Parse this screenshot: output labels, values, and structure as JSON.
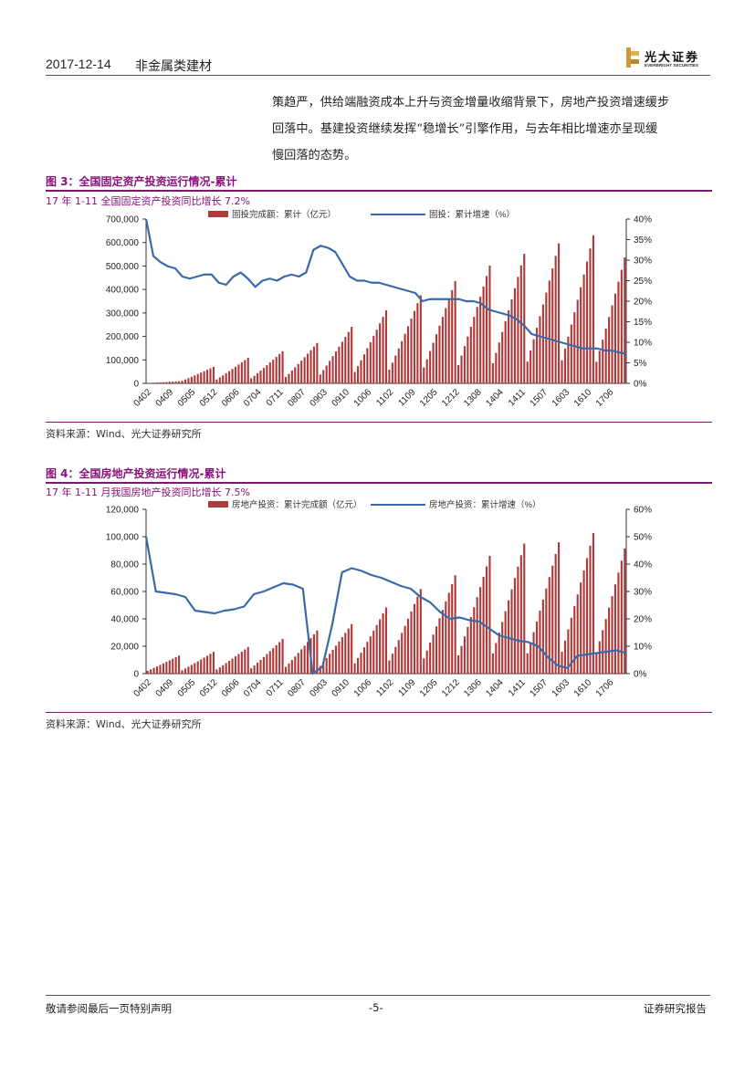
{
  "header": {
    "date": "2017-12-14",
    "sector": "非金属类建材",
    "logo_cn": "光大证券",
    "logo_en": "EVERBRIGHT SECURITIES"
  },
  "body_text": {
    "lines": [
      "策趋严，供给端融资成本上升与资金增量收缩背景下，房地产投资增速缓步",
      "回落中。基建投资继续发挥“稳增长”引擎作用，与去年相比增速亦呈现缓",
      "慢回落的态势。"
    ]
  },
  "figure3": {
    "title": "图 3：全国固定资产投资运行情况-累计",
    "subtitle": "17 年 1-11 全国固定资产投资同比增长 7.2%",
    "source": "资料来源：Wind、光大证券研究所"
  },
  "figure4": {
    "title": "图 4：全国房地产投资运行情况-累计",
    "subtitle": "17 年 1-11 月我国房地产投资同比增长 7.5%",
    "source": "资料来源：Wind、光大证券研究所"
  },
  "footer": {
    "disclaimer": "敬请参阅最后一页特别声明",
    "page": "-5-",
    "report_type": "证券研究报告"
  },
  "colors": {
    "bar": "#b03a3a",
    "line": "#3a6aa8",
    "accent": "#8a0f7a"
  },
  "chart_data": [
    {
      "id": "fig3",
      "type": "bar+line",
      "title": "全国固定资产投资运行情况-累计",
      "series": [
        {
          "name": "固投完成额：累计（亿元）",
          "axis": "left",
          "kind": "bar",
          "peaks": [
            8900,
            70300,
            109000,
            137000,
            172000,
            241000,
            311000,
            375000,
            436000,
            502000,
            552000,
            596000,
            631000,
            589000
          ],
          "start_month": 2
        },
        {
          "name": "固投：累计增速（%）",
          "axis": "right",
          "kind": "line",
          "values": [
            40.0,
            31.0,
            29.5,
            28.5,
            28.0,
            26.0,
            25.5,
            26.0,
            26.5,
            26.5,
            24.5,
            24.0,
            26.0,
            27.0,
            25.5,
            23.5,
            25.0,
            25.5,
            25.0,
            26.0,
            26.5,
            26.0,
            27.0,
            32.5,
            33.5,
            33.0,
            32.0,
            29.0,
            26.0,
            25.0,
            25.0,
            24.5,
            24.5,
            24.0,
            23.5,
            23.0,
            22.5,
            22.0,
            20.0,
            20.5,
            20.5,
            20.5,
            20.5,
            20.5,
            20.0,
            20.0,
            19.5,
            18.0,
            17.5,
            17.0,
            16.5,
            15.5,
            14.0,
            12.0,
            11.5,
            11.0,
            10.5,
            10.0,
            9.5,
            9.0,
            8.5,
            8.5,
            8.5,
            8.0,
            8.0,
            7.5,
            7.2
          ]
        }
      ],
      "left_axis": {
        "min": 0,
        "max": 700000,
        "ticks": [
          "0",
          "100,000",
          "200,000",
          "300,000",
          "400,000",
          "500,000",
          "600,000",
          "700,000"
        ]
      },
      "right_axis": {
        "min": 0,
        "max": 40,
        "ticks": [
          "0%",
          "5%",
          "10%",
          "15%",
          "20%",
          "25%",
          "30%",
          "35%",
          "40%"
        ]
      },
      "x_ticks": [
        "0402",
        "0409",
        "0505",
        "0512",
        "0606",
        "0704",
        "0711",
        "0807",
        "0903",
        "0910",
        "1006",
        "1102",
        "1109",
        "1205",
        "1212",
        "1308",
        "1404",
        "1411",
        "1507",
        "1603",
        "1610",
        "1706"
      ]
    },
    {
      "id": "fig4",
      "type": "bar+line",
      "title": "全国房地产投资运行情况-累计",
      "series": [
        {
          "name": "房地产投资：累计完成额（亿元）",
          "axis": "left",
          "kind": "bar",
          "peaks": [
            13200,
            15900,
            19400,
            25300,
            31500,
            36200,
            48300,
            61800,
            71800,
            86000,
            95000,
            95900,
            102600,
            100400
          ],
          "start_month": 2
        },
        {
          "name": "房地产投资：累计增速（%）",
          "axis": "right",
          "kind": "line",
          "values": [
            50,
            30,
            29.5,
            29,
            28,
            23,
            22.5,
            22,
            23,
            23.5,
            24.5,
            29,
            30,
            31.5,
            33,
            32.5,
            31,
            0,
            2.5,
            18,
            37,
            38.5,
            37.5,
            36,
            35,
            33.5,
            32,
            31,
            28,
            26,
            22.5,
            20,
            20.5,
            19.5,
            19,
            16.5,
            14,
            13,
            12,
            11.5,
            10,
            6,
            3,
            2,
            6.5,
            7,
            7.5,
            8,
            8.5,
            7.5
          ]
        }
      ],
      "left_axis": {
        "min": 0,
        "max": 120000,
        "ticks": [
          "0",
          "20,000",
          "40,000",
          "60,000",
          "80,000",
          "100,000",
          "120,000"
        ]
      },
      "right_axis": {
        "min": 0,
        "max": 60,
        "ticks": [
          "0%",
          "10%",
          "20%",
          "30%",
          "40%",
          "50%",
          "60%"
        ]
      },
      "x_ticks": [
        "0402",
        "0409",
        "0505",
        "0512",
        "0606",
        "0704",
        "0711",
        "0807",
        "0903",
        "0910",
        "1006",
        "1102",
        "1109",
        "1205",
        "1212",
        "1306",
        "1404",
        "1411",
        "1507",
        "1603",
        "1610",
        "1706"
      ]
    }
  ]
}
